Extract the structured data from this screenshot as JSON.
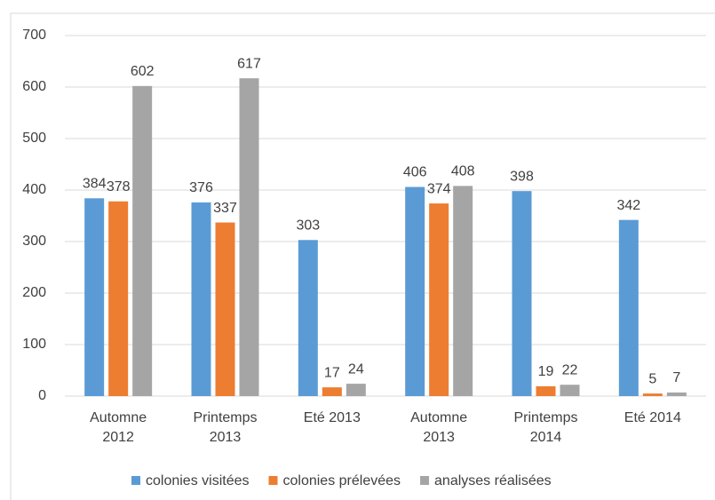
{
  "chart_data": {
    "type": "bar",
    "categories": [
      "Automne 2012",
      "Printemps 2013",
      "Eté 2013",
      "Automne 2013",
      "Printemps 2014",
      "Eté 2014"
    ],
    "series": [
      {
        "name": "colonies visitées",
        "color": "#5b9bd5",
        "values": [
          384,
          376,
          303,
          406,
          398,
          342
        ]
      },
      {
        "name": "colonies prélevées",
        "color": "#ed7d31",
        "values": [
          378,
          337,
          17,
          374,
          19,
          5
        ]
      },
      {
        "name": "analyses réalisées",
        "color": "#a5a5a5",
        "values": [
          602,
          617,
          24,
          408,
          22,
          7
        ]
      }
    ],
    "ylim": [
      0,
      700
    ],
    "yticks": [
      0,
      100,
      200,
      300,
      400,
      500,
      600,
      700
    ],
    "grid": true,
    "legend": "bottom"
  }
}
